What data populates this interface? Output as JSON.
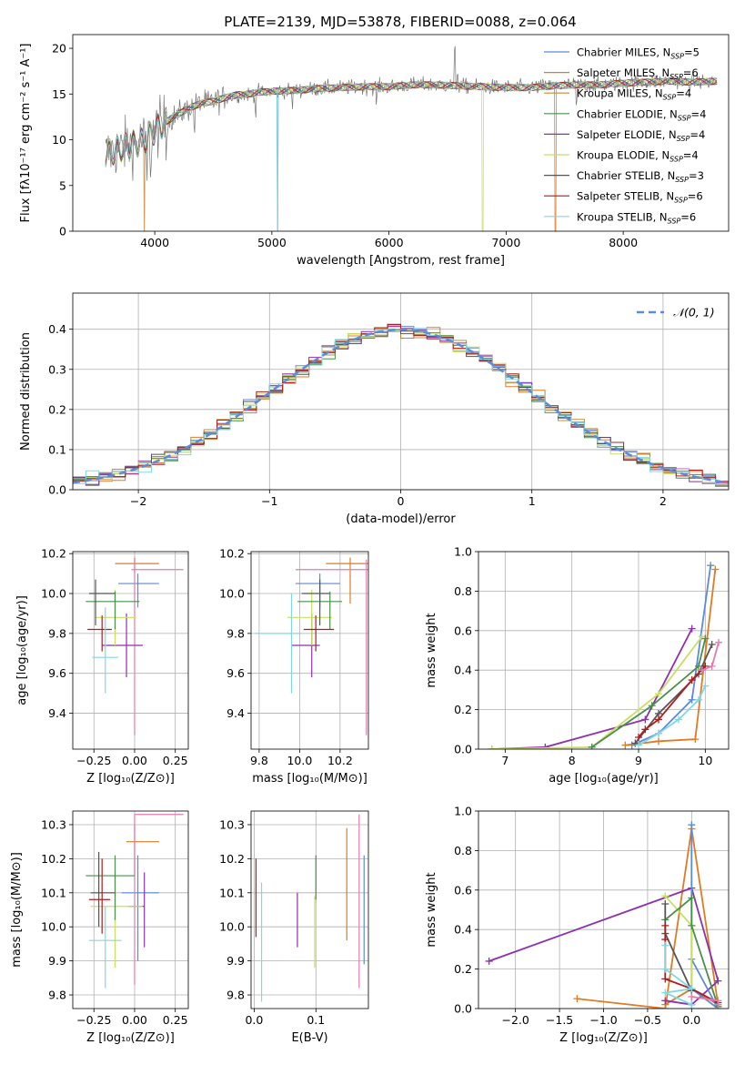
{
  "title": "PLATE=2139, MJD=53878, FIBERID=0088, z=0.064",
  "colors": {
    "C0": "#5b8bd9",
    "C1": "#e07b22",
    "C2": "#c98a3a",
    "C3": "#4a8f4a",
    "C4": "#8e2fb0",
    "C5": "#c8e060",
    "C6": "#555555",
    "C7": "#b01c1c",
    "C8": "#80d8e0",
    "pink": "#e57ab0"
  },
  "chart_data": [
    {
      "id": "spectrum",
      "type": "line",
      "xlabel": "wavelength [Angstrom, rest frame]",
      "ylabel": "Flux [fλ10⁻¹⁷ erg cm⁻² s⁻¹ A⁻¹]",
      "xlim": [
        3300,
        8900
      ],
      "ylim": [
        0,
        21.5
      ],
      "xticks": [
        4000,
        5000,
        6000,
        7000,
        8000
      ],
      "yticks": [
        0,
        5,
        10,
        15,
        20
      ],
      "grid": false,
      "legend": "upper right",
      "continuum": {
        "x": [
          3580,
          3700,
          3800,
          3900,
          4000,
          4100,
          4200,
          4300,
          4400,
          4500,
          4600,
          4700,
          4800,
          4900,
          5000,
          5200,
          5400,
          5600,
          5800,
          6000,
          6200,
          6400,
          6600,
          6800,
          7000,
          7200,
          7400,
          7600,
          7800,
          8000,
          8200,
          8400,
          8600,
          8800
        ],
        "y": [
          8.5,
          9.0,
          9.5,
          9.8,
          11.0,
          12.0,
          12.8,
          13.5,
          14.0,
          14.2,
          14.6,
          14.9,
          15.0,
          15.2,
          15.3,
          15.4,
          15.6,
          15.7,
          15.8,
          15.8,
          16.0,
          16.0,
          15.9,
          15.8,
          15.7,
          15.7,
          15.9,
          16.0,
          16.0,
          16.2,
          16.3,
          16.4,
          16.3,
          16.4
        ]
      },
      "series": [
        {
          "name": "Chabrier MILES, N_SSP=5",
          "color": "C0"
        },
        {
          "name": "Salpeter MILES, N_SSP=6",
          "color": "C1"
        },
        {
          "name": "Kroupa MILES, N_SSP=4",
          "color": "C2"
        },
        {
          "name": "Chabrier ELODIE, N_SSP=4",
          "color": "C3"
        },
        {
          "name": "Salpeter ELODIE, N_SSP=4",
          "color": "C4"
        },
        {
          "name": "Kroupa ELODIE, N_SSP=4",
          "color": "C5"
        },
        {
          "name": "Chabrier STELIB, N_SSP=3",
          "color": "C6"
        },
        {
          "name": "Salpeter STELIB, N_SSP=6",
          "color": "C7"
        },
        {
          "name": "Kroupa STELIB, N_SSP=6",
          "color": "C8"
        }
      ]
    },
    {
      "id": "residual-histogram",
      "type": "line",
      "xlabel": "(data-model)/error",
      "ylabel": "Normed distribution",
      "xlim": [
        -2.5,
        2.5
      ],
      "ylim": [
        0,
        0.49
      ],
      "xticks": [
        -2,
        -1,
        0,
        1,
        2
      ],
      "yticks": [
        0.0,
        0.1,
        0.2,
        0.3,
        0.4
      ],
      "grid": true,
      "legend": "upper right",
      "legend_label": "𝒩(0, 1)",
      "gaussian": {
        "mean": 0,
        "sigma": 1
      },
      "bin_width": 0.1
    },
    {
      "id": "age-vs-Z",
      "type": "scatter",
      "xlabel": "Z [log₁₀(Z/Z⊙)]",
      "ylabel": "age  [log₁₀(age/yr)]",
      "xlim": [
        -0.38,
        0.33
      ],
      "ylim": [
        9.22,
        10.21
      ],
      "xticks": [
        -0.25,
        0.0,
        0.25
      ],
      "yticks": [
        9.4,
        9.6,
        9.8,
        10.0,
        10.2
      ],
      "grid": true,
      "points": [
        {
          "color": "C0",
          "x": 0.02,
          "xerr": [
            0.12,
            0.13
          ],
          "y": 10.05,
          "yerr": [
            0.12,
            0.05
          ]
        },
        {
          "color": "C1",
          "x": 0.0,
          "xerr": [
            0.12,
            0.15
          ],
          "y": 10.15,
          "yerr": [
            0.05,
            0.03
          ]
        },
        {
          "color": "pink",
          "x": 0.0,
          "xerr": [
            0.02,
            0.3
          ],
          "y": 10.12,
          "yerr": [
            0.83,
            0.05
          ]
        },
        {
          "color": "C4",
          "x": -0.05,
          "xerr": [
            0.15,
            0.1
          ],
          "y": 9.74,
          "yerr": [
            0.16,
            0.16
          ]
        },
        {
          "color": "C5",
          "x": -0.12,
          "xerr": [
            0.12,
            0.13
          ],
          "y": 9.88,
          "yerr": [
            0.14,
            0.14
          ]
        },
        {
          "color": "C3",
          "x": -0.12,
          "xerr": [
            0.18,
            0.15
          ],
          "y": 9.96,
          "yerr": [
            0.14,
            0.05
          ]
        },
        {
          "color": "C6",
          "x": -0.24,
          "xerr": [
            0.04,
            0.12
          ],
          "y": 10.0,
          "yerr": [
            0.16,
            0.07
          ]
        },
        {
          "color": "C7",
          "x": -0.2,
          "xerr": [
            0.09,
            0.06
          ],
          "y": 9.82,
          "yerr": [
            0.11,
            0.07
          ]
        },
        {
          "color": "C8",
          "x": -0.18,
          "xerr": [
            0.08,
            0.08
          ],
          "y": 9.68,
          "yerr": [
            0.18,
            0.25
          ]
        }
      ]
    },
    {
      "id": "age-vs-mass",
      "type": "scatter",
      "xlabel": "mass [log₁₀(M/M⊙)]",
      "ylabel": "",
      "xlim": [
        9.76,
        10.34
      ],
      "ylim": [
        9.22,
        10.21
      ],
      "xticks": [
        9.8,
        10.0,
        10.2
      ],
      "yticks": [
        9.4,
        9.6,
        9.8,
        10.0,
        10.2
      ],
      "grid": true,
      "points": [
        {
          "color": "C0",
          "x": 10.1,
          "xerr": [
            0.12,
            0.1
          ],
          "y": 10.05,
          "yerr": [
            0.12,
            0.05
          ]
        },
        {
          "color": "C1",
          "x": 10.25,
          "xerr": [
            0.12,
            0.1
          ],
          "y": 10.15,
          "yerr": [
            0.2,
            0.03
          ]
        },
        {
          "color": "pink",
          "x": 10.33,
          "xerr": [
            0.35,
            0.01
          ],
          "y": 10.12,
          "yerr": [
            0.83,
            0.05
          ]
        },
        {
          "color": "C4",
          "x": 10.06,
          "xerr": [
            0.1,
            0.04
          ],
          "y": 9.74,
          "yerr": [
            0.16,
            0.16
          ]
        },
        {
          "color": "C5",
          "x": 10.06,
          "xerr": [
            0.12,
            0.1
          ],
          "y": 9.88,
          "yerr": [
            0.14,
            0.14
          ]
        },
        {
          "color": "C3",
          "x": 10.15,
          "xerr": [
            0.16,
            0.06
          ],
          "y": 9.96,
          "yerr": [
            0.14,
            0.05
          ]
        },
        {
          "color": "C6",
          "x": 10.1,
          "xerr": [
            0.09,
            0.05
          ],
          "y": 10.0,
          "yerr": [
            0.16,
            0.07
          ]
        },
        {
          "color": "C7",
          "x": 10.08,
          "xerr": [
            0.06,
            0.09
          ],
          "y": 9.82,
          "yerr": [
            0.11,
            0.07
          ]
        },
        {
          "color": "C8",
          "x": 9.96,
          "xerr": [
            0.18,
            0.05
          ],
          "y": 9.8,
          "yerr": [
            0.3,
            0.2
          ]
        }
      ]
    },
    {
      "id": "weight-vs-age",
      "type": "line",
      "xlabel": "age  [log₁₀(age/yr)]",
      "ylabel": "mass weight",
      "xlim": [
        6.6,
        10.35
      ],
      "ylim": [
        0.0,
        1.0
      ],
      "xticks": [
        7,
        8,
        9,
        10
      ],
      "yticks": [
        0.0,
        0.2,
        0.4,
        0.6,
        0.8,
        1.0
      ],
      "grid": true,
      "series": [
        {
          "color": "C0",
          "x": [
            8.9,
            9.3,
            9.8,
            10.08
          ],
          "y": [
            0.02,
            0.08,
            0.25,
            0.93
          ]
        },
        {
          "color": "C1",
          "x": [
            8.8,
            9.3,
            9.85,
            10.15
          ],
          "y": [
            0.02,
            0.04,
            0.05,
            0.91
          ]
        },
        {
          "color": "C4",
          "x": [
            6.8,
            7.6,
            9.1,
            9.8
          ],
          "y": [
            0.0,
            0.01,
            0.15,
            0.61
          ]
        },
        {
          "color": "C5",
          "x": [
            6.8,
            8.3,
            9.3,
            9.95
          ],
          "y": [
            0.0,
            0.01,
            0.28,
            0.57
          ]
        },
        {
          "color": "C3",
          "x": [
            8.3,
            9.2,
            9.9,
            10.0
          ],
          "y": [
            0.01,
            0.22,
            0.42,
            0.56
          ]
        },
        {
          "color": "C6",
          "x": [
            8.95,
            9.3,
            9.9,
            10.1
          ],
          "y": [
            0.03,
            0.18,
            0.38,
            0.53
          ]
        },
        {
          "color": "C7",
          "x": [
            9.0,
            9.1,
            9.3,
            9.8,
            10.0
          ],
          "y": [
            0.06,
            0.1,
            0.15,
            0.35,
            0.42
          ]
        },
        {
          "color": "C8",
          "x": [
            9.0,
            9.3,
            9.6,
            9.9,
            10.0
          ],
          "y": [
            0.02,
            0.08,
            0.15,
            0.25,
            0.32
          ]
        },
        {
          "color": "pink",
          "x": [
            9.95,
            10.1,
            10.2
          ],
          "y": [
            0.4,
            0.42,
            0.54
          ]
        }
      ]
    },
    {
      "id": "mass-vs-Z",
      "type": "scatter",
      "xlabel": "Z [log₁₀(Z/Z⊙)]",
      "ylabel": "mass [log₁₀(M/M⊙)]",
      "xlim": [
        -0.38,
        0.33
      ],
      "ylim": [
        9.76,
        10.34
      ],
      "xticks": [
        -0.25,
        0.0,
        0.25
      ],
      "yticks": [
        9.8,
        9.9,
        10.0,
        10.1,
        10.2,
        10.3
      ],
      "grid": true,
      "points": [
        {
          "color": "C0",
          "x": 0.02,
          "xerr": [
            0.1,
            0.13
          ],
          "y": 10.1,
          "yerr": [
            0.2,
            0.11
          ]
        },
        {
          "color": "C1",
          "x": 0.0,
          "xerr": [
            0.05,
            0.15
          ],
          "y": 10.25,
          "yerr": [
            0.1,
            0.05
          ]
        },
        {
          "color": "pink",
          "x": 0.0,
          "xerr": [
            0.0,
            0.3
          ],
          "y": 10.33,
          "yerr": [
            0.5,
            0.0
          ]
        },
        {
          "color": "C4",
          "x": 0.06,
          "xerr": [
            0.1,
            0.0
          ],
          "y": 10.06,
          "yerr": [
            0.12,
            0.1
          ]
        },
        {
          "color": "C5",
          "x": -0.12,
          "xerr": [
            0.15,
            0.17
          ],
          "y": 10.06,
          "yerr": [
            0.18,
            0.1
          ]
        },
        {
          "color": "C3",
          "x": -0.12,
          "xerr": [
            0.18,
            0.12
          ],
          "y": 10.15,
          "yerr": [
            0.13,
            0.06
          ]
        },
        {
          "color": "C6",
          "x": -0.22,
          "xerr": [
            0.05,
            0.1
          ],
          "y": 10.1,
          "yerr": [
            0.1,
            0.12
          ]
        },
        {
          "color": "C7",
          "x": -0.2,
          "xerr": [
            0.08,
            0.05
          ],
          "y": 10.08,
          "yerr": [
            0.1,
            0.12
          ]
        },
        {
          "color": "C8",
          "x": -0.18,
          "xerr": [
            0.1,
            0.1
          ],
          "y": 9.96,
          "yerr": [
            0.14,
            0.1
          ]
        }
      ]
    },
    {
      "id": "mass-vs-EBV",
      "type": "scatter",
      "xlabel": "E(B-V)",
      "ylabel": "",
      "xlim": [
        -0.005,
        0.185
      ],
      "ylim": [
        9.76,
        10.34
      ],
      "xticks": [
        0.0,
        0.1
      ],
      "yticks": [
        9.8,
        9.9,
        10.0,
        10.1,
        10.2,
        10.3
      ],
      "grid": true,
      "points": [
        {
          "color": "C7",
          "x": 0.003,
          "y": 10.1,
          "yerr": [
            0.13,
            0.1
          ]
        },
        {
          "color": "C8",
          "x": 0.012,
          "y": 9.96,
          "yerr": [
            0.18,
            0.17
          ]
        },
        {
          "color": "C4",
          "x": 0.07,
          "y": 10.03,
          "yerr": [
            0.09,
            0.07
          ]
        },
        {
          "color": "C3",
          "x": 0.1,
          "y": 10.15,
          "yerr": [
            0.07,
            0.06
          ]
        },
        {
          "color": "C5",
          "x": 0.098,
          "y": 10.0,
          "yerr": [
            0.12,
            0.09
          ]
        },
        {
          "color": "C1",
          "x": 0.15,
          "y": 10.12,
          "yerr": [
            0.16,
            0.17
          ]
        },
        {
          "color": "pink",
          "x": 0.17,
          "y": 10.0,
          "yerr": [
            0.18,
            0.33
          ]
        },
        {
          "color": "C0",
          "x": 0.178,
          "y": 10.05,
          "yerr": [
            0.16,
            0.16
          ]
        }
      ]
    },
    {
      "id": "weight-vs-Z",
      "type": "line",
      "xlabel": "Z [log₁₀(Z/Z⊙)]",
      "ylabel": "mass weight",
      "xlim": [
        -2.42,
        0.42
      ],
      "ylim": [
        0.0,
        1.0
      ],
      "xticks": [
        -2.0,
        -1.5,
        -1.0,
        -0.5,
        0.0
      ],
      "yticks": [
        0.0,
        0.2,
        0.4,
        0.6,
        0.8,
        1.0
      ],
      "grid": true,
      "series": [
        {
          "color": "C1",
          "x": [
            -1.3,
            -0.3,
            0.0,
            0.3,
            0.0,
            -0.3
          ],
          "y": [
            0.05,
            0.0,
            0.91,
            0.02,
            0.1,
            0.02
          ]
        },
        {
          "color": "C4",
          "x": [
            -2.3,
            0.0,
            0.3,
            0.0,
            -0.3
          ],
          "y": [
            0.24,
            0.61,
            0.14,
            0.02,
            0.04
          ]
        },
        {
          "color": "C0",
          "x": [
            0.0,
            0.0,
            0.3,
            0.0
          ],
          "y": [
            0.93,
            0.1,
            0.0,
            0.25
          ]
        },
        {
          "color": "C5",
          "x": [
            -0.3,
            0.0,
            0.0,
            0.3
          ],
          "y": [
            0.57,
            0.42,
            0.0,
            0.0
          ]
        },
        {
          "color": "C3",
          "x": [
            -0.3,
            0.0,
            0.0,
            0.3
          ],
          "y": [
            0.45,
            0.56,
            0.42,
            0.01
          ]
        },
        {
          "color": "C6",
          "x": [
            -0.3,
            -0.3,
            0.0
          ],
          "y": [
            0.53,
            0.38,
            0.09
          ]
        },
        {
          "color": "C7",
          "x": [
            -0.3,
            -0.3,
            -0.3,
            0.0,
            0.3
          ],
          "y": [
            0.42,
            0.35,
            0.15,
            0.1,
            0.03
          ]
        },
        {
          "color": "C8",
          "x": [
            -0.3,
            -0.3,
            0.0,
            -0.3,
            0.0
          ],
          "y": [
            0.32,
            0.2,
            0.1,
            0.08,
            0.02
          ]
        },
        {
          "color": "pink",
          "x": [
            0.0,
            0.3,
            0.3
          ],
          "y": [
            0.06,
            0.04,
            0.02
          ]
        }
      ]
    }
  ]
}
